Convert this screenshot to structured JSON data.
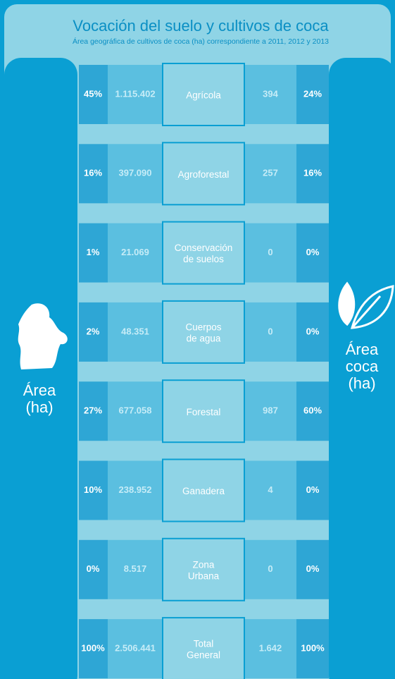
{
  "header": {
    "title": "Vocación del suelo y cultivos de coca",
    "subtitle": "Área geográfica de cultivos de coca (ha) correspondiente a 2011, 2012 y 2013"
  },
  "left_label": [
    "Área",
    "(ha)"
  ],
  "right_label": [
    "Área",
    "coca",
    "(ha)"
  ],
  "table": {
    "rows": [
      {
        "area_pct": "45%",
        "area": "1.115.402",
        "category": [
          "Agrícola"
        ],
        "coca": "394",
        "coca_pct": "24%"
      },
      {
        "area_pct": "16%",
        "area": "397.090",
        "category": [
          "Agroforestal"
        ],
        "coca": "257",
        "coca_pct": "16%"
      },
      {
        "area_pct": "1%",
        "area": "21.069",
        "category": [
          "Conservación",
          "de suelos"
        ],
        "coca": "0",
        "coca_pct": "0%"
      },
      {
        "area_pct": "2%",
        "area": "48.351",
        "category": [
          "Cuerpos",
          "de agua"
        ],
        "coca": "0",
        "coca_pct": "0%"
      },
      {
        "area_pct": "27%",
        "area": "677.058",
        "category": [
          "Forestal"
        ],
        "coca": "987",
        "coca_pct": "60%"
      },
      {
        "area_pct": "10%",
        "area": "238.952",
        "category": [
          "Ganadera"
        ],
        "coca": "4",
        "coca_pct": "0%"
      },
      {
        "area_pct": "0%",
        "area": "8.517",
        "category": [
          "Zona",
          "Urbana"
        ],
        "coca": "0",
        "coca_pct": "0%"
      },
      {
        "area_pct": "100%",
        "area": "2.506.441",
        "category": [
          "Total",
          "General"
        ],
        "coca": "1.642",
        "coca_pct": "100%"
      }
    ]
  }
}
